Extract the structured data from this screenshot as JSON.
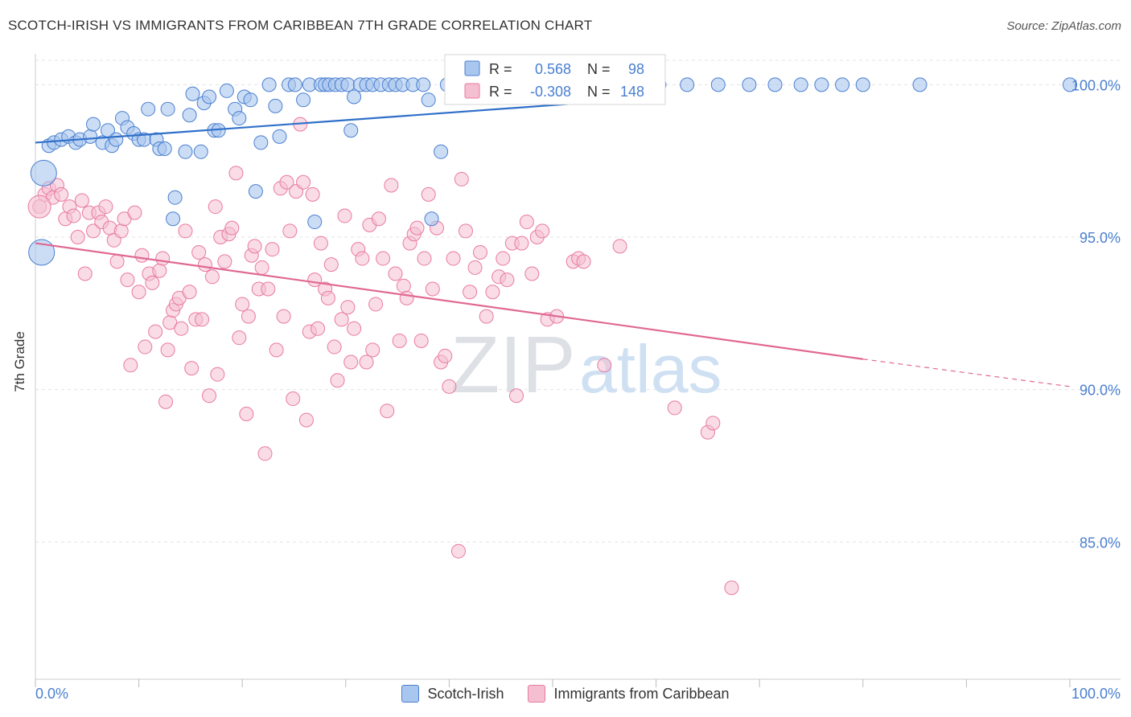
{
  "title": "SCOTCH-IRISH VS IMMIGRANTS FROM CARIBBEAN 7TH GRADE CORRELATION CHART",
  "source": "Source: ZipAtlas.com",
  "watermark": {
    "zip": "ZIP",
    "atlas": "atlas"
  },
  "colors": {
    "blue": "#4a7fd0",
    "blue_fill": "#a9c6ee",
    "blue_line": "#2f6fc9",
    "pink": "#e97aa0",
    "pink_fill": "#f4bfd1",
    "pink_line": "#e06893",
    "tick_label": "#4a7fd0"
  },
  "chart_data": {
    "type": "scatter",
    "title": "SCOTCH-IRISH VS IMMIGRANTS FROM CARIBBEAN 7TH GRADE CORRELATION CHART",
    "xlabel": "",
    "ylabel": "7th Grade",
    "xlim": [
      0,
      100
    ],
    "ylim": [
      80.5,
      100.8
    ],
    "x_tick_labels": [
      "0.0%",
      "100.0%"
    ],
    "y_ticks": [
      85,
      90,
      95,
      100
    ],
    "y_tick_labels": [
      "85.0%",
      "90.0%",
      "95.0%",
      "100.0%"
    ],
    "grid": "dashed horizontal",
    "legend_position": "top-center and bottom",
    "stats": [
      {
        "r_label": "R =",
        "r": "0.568",
        "n_label": "N =",
        "n": "98"
      },
      {
        "r_label": "R =",
        "r": "-0.308",
        "n_label": "N =",
        "n": "148"
      }
    ],
    "series": [
      {
        "name": "Scotch-Irish",
        "trend": {
          "x0": 0,
          "y0": 98.1,
          "x1": 57,
          "y1": 99.5
        },
        "points": [
          [
            0.8,
            97.1
          ],
          [
            0.6,
            94.5
          ],
          [
            1.3,
            98.0
          ],
          [
            1.8,
            98.1
          ],
          [
            2.5,
            98.2
          ],
          [
            3.2,
            98.3
          ],
          [
            3.9,
            98.1
          ],
          [
            4.3,
            98.2
          ],
          [
            5.3,
            98.3
          ],
          [
            5.6,
            98.7
          ],
          [
            6.5,
            98.1
          ],
          [
            7.0,
            98.5
          ],
          [
            7.4,
            98.0
          ],
          [
            7.8,
            98.2
          ],
          [
            8.4,
            98.9
          ],
          [
            8.9,
            98.6
          ],
          [
            9.5,
            98.4
          ],
          [
            10.0,
            98.2
          ],
          [
            10.5,
            98.2
          ],
          [
            10.9,
            99.2
          ],
          [
            11.7,
            98.2
          ],
          [
            12.0,
            97.9
          ],
          [
            12.5,
            97.9
          ],
          [
            12.8,
            99.2
          ],
          [
            13.5,
            96.3
          ],
          [
            13.3,
            95.6
          ],
          [
            14.5,
            97.8
          ],
          [
            14.9,
            99.0
          ],
          [
            15.2,
            99.7
          ],
          [
            16.0,
            97.8
          ],
          [
            16.3,
            99.4
          ],
          [
            16.8,
            99.6
          ],
          [
            17.3,
            98.5
          ],
          [
            17.7,
            98.5
          ],
          [
            18.5,
            99.8
          ],
          [
            19.3,
            99.2
          ],
          [
            19.7,
            98.9
          ],
          [
            20.2,
            99.6
          ],
          [
            20.8,
            99.5
          ],
          [
            21.3,
            96.5
          ],
          [
            21.8,
            98.1
          ],
          [
            22.6,
            100.0
          ],
          [
            23.2,
            99.3
          ],
          [
            23.6,
            98.3
          ],
          [
            24.5,
            100.0
          ],
          [
            25.1,
            100.0
          ],
          [
            25.9,
            99.5
          ],
          [
            26.5,
            100.0
          ],
          [
            27.0,
            95.5
          ],
          [
            27.6,
            100.0
          ],
          [
            28.0,
            100.0
          ],
          [
            28.4,
            100.0
          ],
          [
            29.0,
            100.0
          ],
          [
            29.6,
            100.0
          ],
          [
            30.2,
            100.0
          ],
          [
            30.5,
            98.5
          ],
          [
            30.8,
            99.6
          ],
          [
            31.4,
            100.0
          ],
          [
            32.0,
            100.0
          ],
          [
            32.6,
            100.0
          ],
          [
            33.4,
            100.0
          ],
          [
            34.2,
            100.0
          ],
          [
            34.8,
            100.0
          ],
          [
            35.5,
            100.0
          ],
          [
            36.5,
            100.0
          ],
          [
            37.5,
            100.0
          ],
          [
            38.0,
            99.5
          ],
          [
            38.3,
            95.6
          ],
          [
            39.2,
            97.8
          ],
          [
            39.8,
            100.0
          ],
          [
            40.5,
            100.0
          ],
          [
            41.5,
            100.0
          ],
          [
            42.0,
            100.0
          ],
          [
            42.5,
            100.0
          ],
          [
            43.5,
            100.0
          ],
          [
            44.8,
            100.0
          ],
          [
            45.6,
            100.0
          ],
          [
            46.3,
            100.0
          ],
          [
            47.5,
            100.0
          ],
          [
            48.8,
            100.0
          ],
          [
            50.8,
            100.0
          ],
          [
            52.0,
            100.0
          ],
          [
            53.5,
            100.0
          ],
          [
            55.0,
            100.0
          ],
          [
            57.0,
            100.0
          ],
          [
            59.0,
            100.0
          ],
          [
            60.3,
            100.0
          ],
          [
            63.0,
            100.0
          ],
          [
            66.0,
            100.0
          ],
          [
            69.0,
            100.0
          ],
          [
            71.5,
            100.0
          ],
          [
            74.0,
            100.0
          ],
          [
            76.0,
            100.0
          ],
          [
            78.0,
            100.0
          ],
          [
            80.0,
            100.0
          ],
          [
            85.5,
            100.0
          ],
          [
            100.0,
            100.0
          ]
        ]
      },
      {
        "name": "Immigrants from Caribbean",
        "trend": {
          "x0": 0,
          "y0": 94.8,
          "x1": 80,
          "y1": 91.0,
          "dash_to_x": 100,
          "dash_to_y": 90.1
        },
        "points": [
          [
            0.4,
            96.0
          ],
          [
            0.9,
            96.4
          ],
          [
            1.3,
            96.6
          ],
          [
            1.7,
            96.3
          ],
          [
            2.1,
            96.7
          ],
          [
            2.5,
            96.4
          ],
          [
            2.9,
            95.6
          ],
          [
            3.3,
            96.0
          ],
          [
            3.7,
            95.7
          ],
          [
            4.1,
            95.0
          ],
          [
            4.5,
            96.2
          ],
          [
            4.8,
            93.8
          ],
          [
            5.2,
            95.8
          ],
          [
            5.6,
            95.2
          ],
          [
            6.1,
            95.8
          ],
          [
            6.4,
            95.5
          ],
          [
            6.8,
            96.0
          ],
          [
            7.2,
            95.3
          ],
          [
            7.6,
            94.9
          ],
          [
            7.9,
            94.2
          ],
          [
            8.3,
            95.2
          ],
          [
            8.6,
            95.6
          ],
          [
            8.9,
            93.6
          ],
          [
            9.2,
            90.8
          ],
          [
            9.6,
            95.8
          ],
          [
            10.0,
            93.2
          ],
          [
            10.3,
            94.4
          ],
          [
            10.6,
            91.4
          ],
          [
            11.0,
            93.8
          ],
          [
            11.3,
            93.5
          ],
          [
            11.6,
            91.9
          ],
          [
            12.0,
            93.9
          ],
          [
            12.3,
            94.3
          ],
          [
            12.6,
            89.6
          ],
          [
            12.8,
            91.3
          ],
          [
            13.0,
            92.2
          ],
          [
            13.3,
            92.6
          ],
          [
            13.6,
            92.8
          ],
          [
            13.9,
            93.0
          ],
          [
            14.1,
            92.0
          ],
          [
            14.5,
            95.2
          ],
          [
            14.9,
            93.2
          ],
          [
            15.1,
            90.7
          ],
          [
            15.5,
            92.3
          ],
          [
            15.8,
            94.5
          ],
          [
            16.1,
            92.3
          ],
          [
            16.4,
            94.1
          ],
          [
            16.8,
            89.8
          ],
          [
            17.1,
            93.7
          ],
          [
            17.4,
            96.0
          ],
          [
            17.6,
            90.5
          ],
          [
            17.9,
            95.0
          ],
          [
            18.3,
            94.2
          ],
          [
            18.7,
            95.1
          ],
          [
            19.0,
            95.3
          ],
          [
            19.4,
            97.1
          ],
          [
            19.7,
            91.7
          ],
          [
            20.0,
            92.8
          ],
          [
            20.4,
            89.2
          ],
          [
            20.6,
            92.4
          ],
          [
            20.9,
            94.4
          ],
          [
            21.2,
            94.7
          ],
          [
            21.6,
            93.3
          ],
          [
            21.9,
            94.0
          ],
          [
            22.2,
            87.9
          ],
          [
            22.5,
            93.3
          ],
          [
            22.9,
            94.6
          ],
          [
            23.3,
            91.3
          ],
          [
            23.7,
            96.6
          ],
          [
            24.0,
            92.4
          ],
          [
            24.3,
            96.8
          ],
          [
            24.6,
            95.2
          ],
          [
            24.9,
            89.7
          ],
          [
            25.2,
            96.5
          ],
          [
            25.6,
            98.7
          ],
          [
            25.9,
            96.8
          ],
          [
            26.2,
            89.0
          ],
          [
            26.5,
            91.9
          ],
          [
            26.8,
            96.4
          ],
          [
            27.0,
            93.6
          ],
          [
            27.3,
            92.0
          ],
          [
            27.6,
            94.8
          ],
          [
            28.0,
            93.3
          ],
          [
            28.3,
            93.0
          ],
          [
            28.6,
            94.1
          ],
          [
            28.9,
            91.4
          ],
          [
            29.2,
            90.3
          ],
          [
            29.6,
            92.3
          ],
          [
            29.9,
            95.7
          ],
          [
            30.2,
            92.7
          ],
          [
            30.5,
            90.9
          ],
          [
            30.8,
            92.0
          ],
          [
            31.2,
            94.6
          ],
          [
            31.6,
            94.3
          ],
          [
            32.0,
            90.9
          ],
          [
            32.3,
            95.4
          ],
          [
            32.6,
            91.3
          ],
          [
            32.9,
            92.8
          ],
          [
            33.2,
            95.6
          ],
          [
            33.6,
            94.3
          ],
          [
            34.0,
            89.3
          ],
          [
            34.4,
            96.7
          ],
          [
            34.8,
            93.8
          ],
          [
            35.2,
            91.6
          ],
          [
            35.6,
            93.4
          ],
          [
            35.9,
            93.0
          ],
          [
            36.2,
            94.8
          ],
          [
            36.6,
            95.1
          ],
          [
            36.9,
            95.3
          ],
          [
            37.3,
            91.6
          ],
          [
            37.6,
            94.3
          ],
          [
            38.0,
            96.4
          ],
          [
            38.4,
            93.3
          ],
          [
            38.8,
            95.3
          ],
          [
            39.2,
            90.9
          ],
          [
            39.6,
            91.1
          ],
          [
            40.0,
            90.1
          ],
          [
            40.4,
            94.3
          ],
          [
            40.9,
            84.7
          ],
          [
            41.2,
            96.9
          ],
          [
            41.6,
            95.2
          ],
          [
            42.0,
            93.2
          ],
          [
            42.5,
            94.0
          ],
          [
            43.0,
            94.5
          ],
          [
            43.6,
            92.4
          ],
          [
            44.2,
            93.2
          ],
          [
            44.8,
            93.7
          ],
          [
            45.2,
            94.3
          ],
          [
            45.6,
            93.6
          ],
          [
            46.1,
            94.8
          ],
          [
            46.5,
            89.8
          ],
          [
            47.0,
            94.8
          ],
          [
            47.5,
            95.5
          ],
          [
            48.0,
            93.8
          ],
          [
            48.5,
            95.0
          ],
          [
            49.0,
            95.2
          ],
          [
            49.5,
            92.3
          ],
          [
            50.4,
            92.4
          ],
          [
            52.0,
            94.2
          ],
          [
            52.5,
            94.3
          ],
          [
            53.0,
            94.2
          ],
          [
            55.0,
            90.8
          ],
          [
            56.5,
            94.7
          ],
          [
            61.8,
            89.4
          ],
          [
            65.0,
            88.6
          ],
          [
            65.5,
            88.9
          ],
          [
            67.3,
            83.5
          ]
        ]
      }
    ]
  }
}
